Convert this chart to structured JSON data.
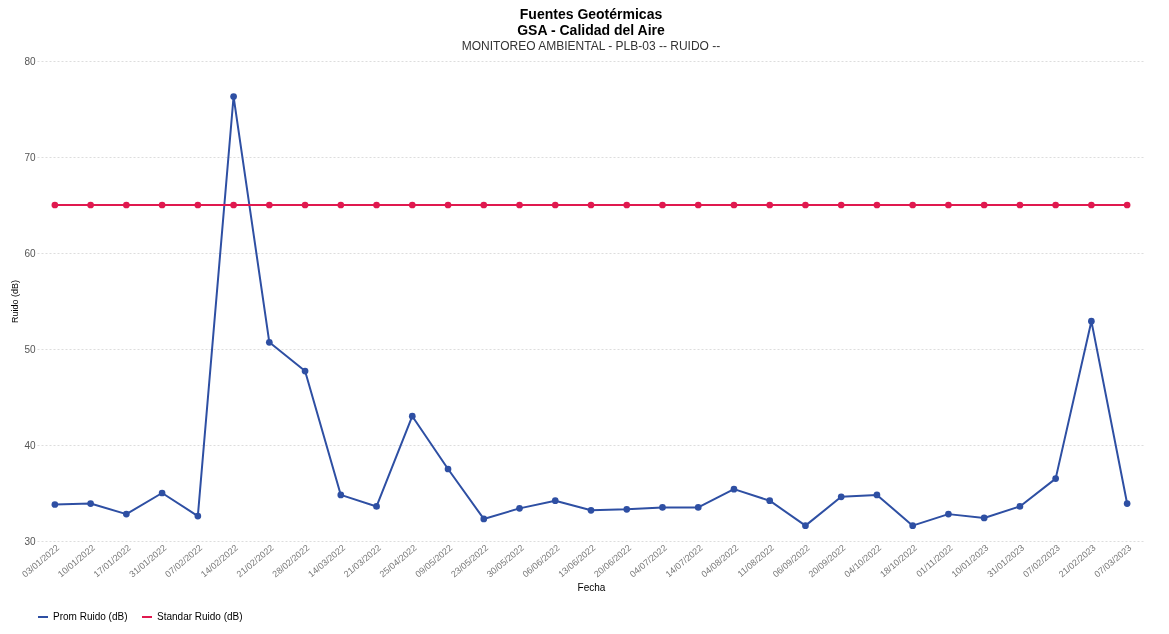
{
  "chart_data": {
    "type": "line",
    "title": "Fuentes Geotérmicas\nGSA - Calidad del Aire",
    "subtitle": "MONITOREO AMBIENTAL - PLB-03 -- RUIDO --",
    "xlabel": "Fecha",
    "ylabel": "Ruido (dB)",
    "categories": [
      "03/01/2022",
      "10/01/2022",
      "17/01/2022",
      "31/01/2022",
      "07/02/2022",
      "14/02/2022",
      "21/02/2022",
      "28/02/2022",
      "14/03/2022",
      "21/03/2022",
      "25/04/2022",
      "09/05/2022",
      "23/05/2022",
      "30/05/2022",
      "06/06/2022",
      "13/06/2022",
      "20/06/2022",
      "04/07/2022",
      "14/07/2022",
      "04/08/2022",
      "11/08/2022",
      "06/09/2022",
      "20/09/2022",
      "04/10/2022",
      "18/10/2022",
      "01/11/2022",
      "10/01/2023",
      "31/01/2023",
      "07/02/2023",
      "21/02/2023",
      "07/03/2023"
    ],
    "series": [
      {
        "name": "Prom Ruido (dB)",
        "color": "#2e4fa3",
        "values": [
          33.8,
          33.9,
          32.8,
          35.0,
          32.6,
          76.3,
          50.7,
          47.7,
          34.8,
          33.6,
          43.0,
          37.5,
          32.3,
          33.4,
          34.2,
          33.2,
          33.3,
          33.5,
          33.5,
          35.4,
          34.2,
          31.6,
          34.6,
          34.8,
          31.6,
          32.8,
          32.4,
          33.6,
          36.5,
          52.9,
          33.9
        ]
      },
      {
        "name": "Standar Ruido (dB)",
        "color": "#e0194f",
        "values": [
          65,
          65,
          65,
          65,
          65,
          65,
          65,
          65,
          65,
          65,
          65,
          65,
          65,
          65,
          65,
          65,
          65,
          65,
          65,
          65,
          65,
          65,
          65,
          65,
          65,
          65,
          65,
          65,
          65,
          65,
          65
        ]
      }
    ],
    "ylim": [
      30,
      80
    ],
    "yticks": [
      30,
      40,
      50,
      60,
      70,
      80
    ],
    "grid": "y",
    "legend": "bottom",
    "marker": "circle",
    "line_style": "solid"
  }
}
